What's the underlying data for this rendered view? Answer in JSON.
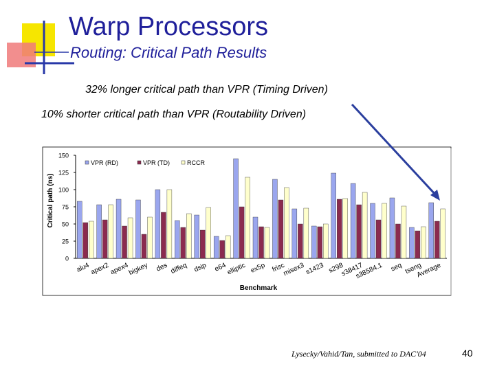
{
  "slide": {
    "title": "Warp Processors",
    "subtitle": "Routing: Critical Path Results",
    "note_longer": "32% longer critical path than VPR (Timing Driven)",
    "note_shorter": "10% shorter critical path than VPR (Routability Driven)",
    "footer_ref": "Lysecky/Vahid/Tan, submitted to DAC'04",
    "page_number": "40"
  },
  "colors": {
    "title": "#1f1f9a",
    "arrow": "#2b3f9e",
    "logo_yellow": "#f6e600",
    "logo_red": "#f07a7a",
    "logo_blue": "#2838a8"
  },
  "chart_data": {
    "type": "bar",
    "title": "",
    "xlabel": "Benchmark",
    "ylabel": "Critical path (ns)",
    "ylim": [
      0,
      150
    ],
    "yticks": [
      0,
      25,
      50,
      75,
      100,
      125,
      150
    ],
    "grid": false,
    "legend_position": "top",
    "categories": [
      "alu4",
      "apex2",
      "apex4",
      "bigkey",
      "des",
      "diffeq",
      "dsip",
      "e64",
      "elliptic",
      "ex5p",
      "frisc",
      "misex3",
      "s1423",
      "s298",
      "s38417",
      "s38584.1",
      "seq",
      "tseng",
      "Average"
    ],
    "series": [
      {
        "name": "VPR (RD)",
        "color": "#9aa6ee",
        "values": [
          83,
          78,
          86,
          85,
          100,
          55,
          63,
          32,
          145,
          60,
          115,
          72,
          47,
          124,
          109,
          80,
          88,
          45,
          81
        ]
      },
      {
        "name": "VPR (TD)",
        "color": "#8b2b4f",
        "values": [
          52,
          56,
          47,
          35,
          67,
          45,
          41,
          26,
          75,
          46,
          85,
          50,
          46,
          86,
          78,
          56,
          50,
          40,
          54
        ]
      },
      {
        "name": "RCCR",
        "color": "#ffffcc",
        "values": [
          54,
          78,
          59,
          60,
          100,
          65,
          74,
          33,
          118,
          45,
          103,
          73,
          50,
          87,
          96,
          80,
          76,
          46,
          72
        ]
      }
    ]
  }
}
